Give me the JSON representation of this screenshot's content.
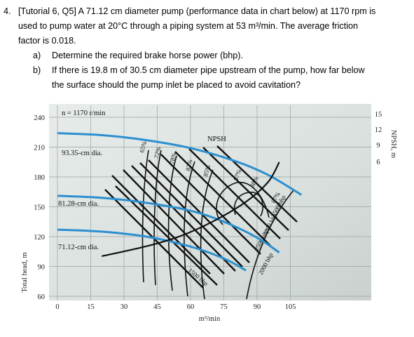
{
  "question": {
    "number": "4.",
    "stem_line1": "[Tutorial 6, Q5] A 71.12 cm diameter pump (performance data in chart below) at 1170 rpm is",
    "stem_line2": "used to pump water at 20°C through a piping system at 53 m³/min. The average friction",
    "stem_line3": "factor is 0.018.",
    "part_a_label": "a)",
    "part_a_text": "Determine the required brake horse power (bhp).",
    "part_b_label": "b)",
    "part_b_line1": "If there is 19.8 m of 30.5 cm diameter pipe upstream of the pump, how far below",
    "part_b_line2": "the surface should the pump inlet be placed to avoid cavitation?"
  },
  "chart_data": {
    "type": "line",
    "speed_label": "n = 1170 r/min",
    "xlabel": "m³/min",
    "ylabel": "Total head, m",
    "y2label": "NPSH, m",
    "x_ticks": [
      "0",
      "15",
      "30",
      "45",
      "60",
      "75",
      "90",
      "105"
    ],
    "y_ticks": [
      "60",
      "90",
      "120",
      "150",
      "180",
      "210",
      "240"
    ],
    "y2_ticks": [
      "15",
      "12",
      "9",
      "6"
    ],
    "xlim": [
      0,
      120
    ],
    "ylim": [
      60,
      250
    ],
    "y2lim": [
      0,
      16
    ],
    "series": [
      {
        "name": "93.35-cm dia.",
        "x": [
          0,
          20,
          40,
          60,
          80,
          95,
          110
        ],
        "y": [
          224,
          222,
          217,
          209,
          196,
          182,
          162
        ]
      },
      {
        "name": "81.28-cm dia.",
        "x": [
          0,
          20,
          40,
          60,
          75,
          90,
          100
        ],
        "y": [
          161,
          159,
          154,
          146,
          135,
          119,
          104
        ]
      },
      {
        "name": "71.12-cm dia.",
        "x": [
          0,
          20,
          40,
          60,
          75,
          85
        ],
        "y": [
          127,
          125,
          120,
          110,
          98,
          86
        ]
      }
    ],
    "npsh": {
      "name": "NPSH",
      "x": [
        20,
        40,
        55,
        70,
        85,
        95,
        100
      ],
      "y": [
        6.5,
        7.5,
        8.5,
        10,
        12,
        14,
        16
      ]
    },
    "efficiency_labels": [
      "65%",
      "72%",
      "78%",
      "82%",
      "85%",
      "87%",
      "88%",
      "87%"
    ],
    "bhp_labels": [
      "1500 bhp",
      "2000 bhp",
      "2500 bhp",
      "3000 bhp",
      "3500 bhp"
    ]
  }
}
